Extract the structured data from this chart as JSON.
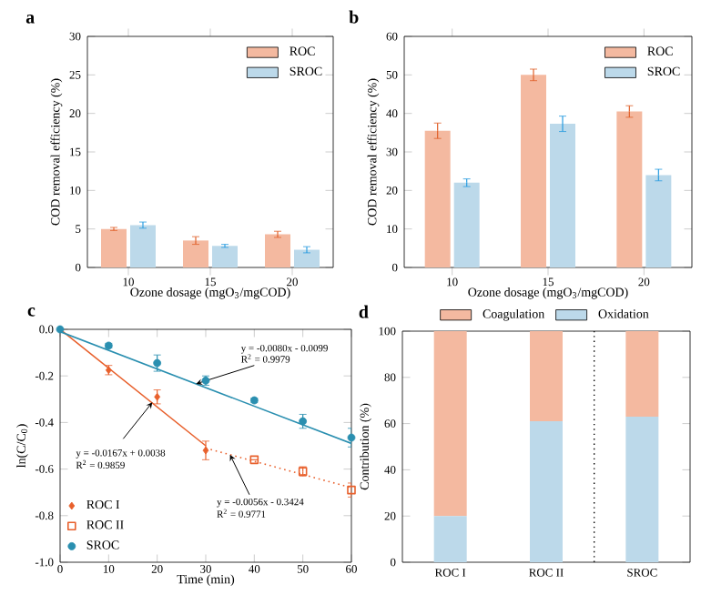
{
  "chart_data": [
    {
      "type": "bar",
      "title": "a",
      "xlabel": "Ozone dosage (mgO$_{3}$/mgCOD)",
      "ylabel": "COD removal efficiency (%)",
      "categories": [
        "10",
        "15",
        "20"
      ],
      "ylim": [
        0,
        30
      ],
      "yticks": [
        0,
        5,
        10,
        15,
        20,
        25,
        30
      ],
      "legend": "top right",
      "series": [
        {
          "name": "ROC",
          "color": "#f4b9a0",
          "values": [
            5.0,
            3.5,
            4.3
          ],
          "errors": [
            0.2,
            0.5,
            0.4
          ]
        },
        {
          "name": "SROC",
          "color": "#bcd9ea",
          "values": [
            5.5,
            2.8,
            2.3
          ],
          "errors": [
            0.4,
            0.2,
            0.4
          ]
        }
      ]
    },
    {
      "type": "bar",
      "title": "b",
      "xlabel": "Ozone dosage (mgO$_{3}$/mgCOD)",
      "ylabel": "COD removal efficiency (%)",
      "categories": [
        "10",
        "15",
        "20"
      ],
      "ylim": [
        0,
        60
      ],
      "yticks": [
        0,
        10,
        20,
        30,
        40,
        50,
        60
      ],
      "legend": "top right",
      "series": [
        {
          "name": "ROC",
          "color": "#f4b9a0",
          "values": [
            35.5,
            50.0,
            40.5
          ],
          "errors": [
            2.0,
            1.5,
            1.5
          ]
        },
        {
          "name": "SROC",
          "color": "#bcd9ea",
          "values": [
            22.0,
            37.3,
            24.0
          ],
          "errors": [
            1.0,
            2.0,
            1.5
          ]
        }
      ]
    },
    {
      "type": "scatter",
      "xlabel": "Time (min)",
      "ylabel": "ln(C/C$_{0}$)",
      "title": "c",
      "xlim": [
        0,
        60
      ],
      "xticks": [
        0,
        10,
        20,
        30,
        40,
        50,
        60
      ],
      "ylim": [
        -1.0,
        0.0
      ],
      "yticks": [
        {
          "value": -1.0,
          "label": "-1.0"
        },
        -0.8,
        -0.6,
        -0.4,
        -0.2,
        {
          "value": 0,
          "label": "0.0"
        }
      ],
      "legend": "bottom left",
      "series": [
        {
          "type": "line",
          "color": "#e8602c",
          "line_style": "solid",
          "marker": "none",
          "x": [
            0,
            30
          ],
          "values": [
            0.0,
            -0.5
          ]
        },
        {
          "type": "line",
          "color": "#e8602c",
          "line_style": "dotted",
          "marker": "none",
          "x": [
            30,
            60
          ],
          "values": [
            -0.51,
            -0.68
          ]
        },
        {
          "type": "line",
          "color": "#2a8fb0",
          "line_style": "solid",
          "marker": "none",
          "x": [
            0,
            60
          ],
          "values": [
            -0.01,
            -0.49
          ]
        },
        {
          "name": "ROC I",
          "color": "#e8602c",
          "marker": "diamond",
          "x": [
            0,
            10,
            20,
            30
          ],
          "values": [
            0.0,
            -0.175,
            -0.29,
            -0.52
          ],
          "errors": [
            null,
            0.02,
            0.03,
            0.04
          ]
        },
        {
          "name": "ROC II",
          "color": "#e8602c",
          "marker": "square",
          "x": [
            40,
            50,
            60
          ],
          "values": [
            -0.56,
            -0.61,
            -0.69
          ],
          "errors": [
            null,
            0.02,
            0.03
          ]
        },
        {
          "name": "SROC",
          "color": "#2a8fb0",
          "marker": "circle",
          "x": [
            0,
            10,
            20,
            30,
            40,
            50,
            60
          ],
          "values": [
            0.0,
            -0.07,
            -0.145,
            -0.22,
            -0.305,
            -0.395,
            -0.465
          ],
          "errors": [
            null,
            0.01,
            0.035,
            0.02,
            0.01,
            0.03,
            0.04
          ]
        }
      ],
      "annotations": [
        {
          "text": "y = -0.0080x - 0.0099",
          "x": 28,
          "y": -0.234
        },
        "R$^{2}$ = 0.9979",
        {
          "text": "y = -0.0167x + 0.0038",
          "x": 19,
          "y": -0.3135
        },
        "R$^{2}$ = 0.9859",
        {
          "text": "y = -0.0056x - 0.3424",
          "x": 35,
          "y": -0.5384
        },
        "R$^{2}$ = 0.9771"
      ]
    },
    {
      "type": "bar",
      "title": "d",
      "ylabel": "Contribution (%)",
      "categories": [
        "ROC I",
        "ROC II",
        "SROC"
      ],
      "stacked": true,
      "ylim": [
        0,
        100
      ],
      "yticks": [
        0,
        20,
        40,
        60,
        80,
        100
      ],
      "legend": "top",
      "series": [
        {
          "name": "Oxidation",
          "color": "#bcd9ea",
          "values": [
            20,
            61,
            63
          ]
        },
        {
          "name": "Coagulation",
          "color": "#f4b9a0",
          "values": [
            80,
            39,
            37
          ]
        }
      ]
    }
  ]
}
